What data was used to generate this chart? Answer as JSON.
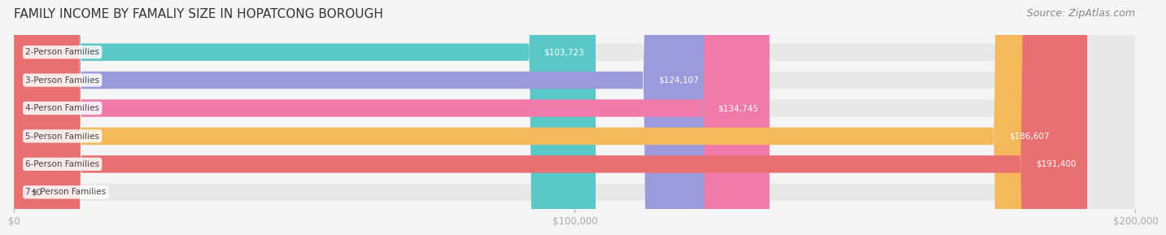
{
  "title": "FAMILY INCOME BY FAMALIY SIZE IN HOPATCONG BOROUGH",
  "source": "Source: ZipAtlas.com",
  "categories": [
    "2-Person Families",
    "3-Person Families",
    "4-Person Families",
    "5-Person Families",
    "6-Person Families",
    "7+ Person Families"
  ],
  "values": [
    103723,
    124107,
    134745,
    186607,
    191400,
    0
  ],
  "bar_colors": [
    "#5bc8c8",
    "#9b9bdb",
    "#f07aaa",
    "#f5b85a",
    "#e87070",
    "#a8cfe0"
  ],
  "label_colors": [
    "white",
    "white",
    "white",
    "white",
    "white",
    "#555555"
  ],
  "value_labels": [
    "$103,723",
    "$124,107",
    "$134,745",
    "$186,607",
    "$191,400",
    "$0"
  ],
  "xlim": [
    0,
    200000
  ],
  "xticks": [
    0,
    100000,
    200000
  ],
  "xtick_labels": [
    "$0",
    "$100,000",
    "$200,000"
  ],
  "background_color": "#f5f5f5",
  "bar_background": "#e8e8e8",
  "title_fontsize": 11,
  "source_fontsize": 9,
  "bar_height": 0.62,
  "figsize": [
    14.06,
    3.05
  ]
}
